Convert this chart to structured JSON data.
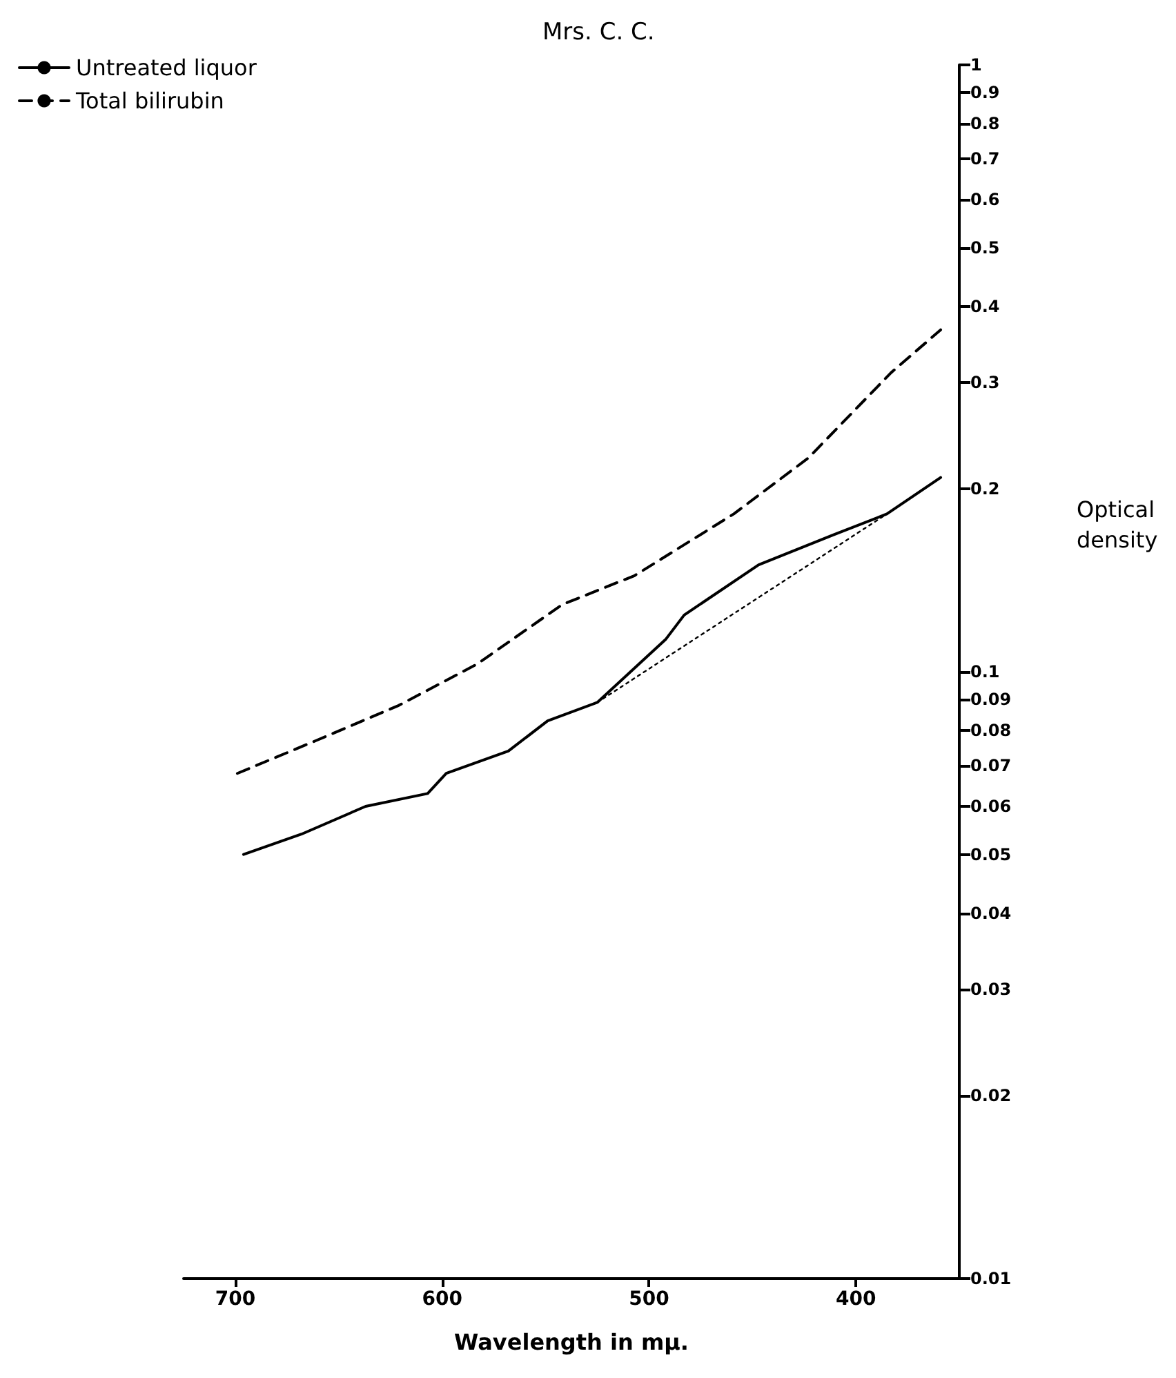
{
  "chart_data": {
    "type": "line",
    "title": "Mrs. C. C.",
    "xlabel": "Wavelength in mμ.",
    "ylabel": "Optical density",
    "xlim": [
      725,
      350
    ],
    "xticks": [
      700,
      600,
      500,
      400
    ],
    "ylim": [
      0.01,
      1
    ],
    "log": "y",
    "yticks": [
      0.01,
      0.02,
      0.03,
      0.04,
      0.05,
      0.06,
      0.07,
      0.08,
      0.09,
      0.1,
      0.2,
      0.3,
      0.4,
      0.5,
      0.6,
      0.7,
      0.8,
      0.9,
      1
    ],
    "grid": false,
    "legend": "top left",
    "marker": "none",
    "series": [
      {
        "name": "Untreated liquor",
        "color": "#000000",
        "line_style": "solid",
        "x": [
          696,
          668,
          637,
          607,
          598,
          568,
          549,
          525,
          492,
          483,
          447,
          411,
          385,
          359
        ],
        "values": [
          0.05,
          0.054,
          0.06,
          0.063,
          0.068,
          0.074,
          0.083,
          0.089,
          0.113,
          0.124,
          0.15,
          0.168,
          0.182,
          0.209
        ]
      },
      {
        "name": "Total bilirubin",
        "color": "#000000",
        "line_style": "dashed",
        "x": [
          699,
          661,
          621,
          583,
          542,
          507,
          459,
          423,
          383,
          359
        ],
        "values": [
          0.068,
          0.077,
          0.088,
          0.103,
          0.129,
          0.144,
          0.182,
          0.225,
          0.311,
          0.366
        ]
      },
      {
        "color": "#000000",
        "line_style": "dotted",
        "x": [
          525,
          385
        ],
        "values": [
          0.089,
          0.182
        ]
      }
    ]
  }
}
